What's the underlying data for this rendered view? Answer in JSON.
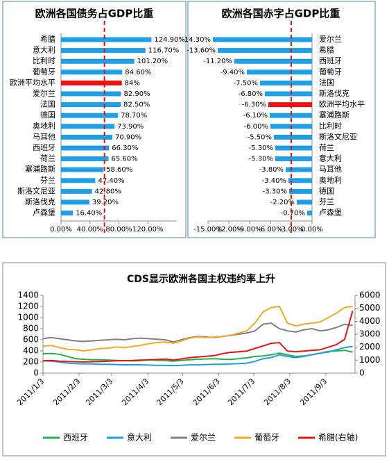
{
  "chart_data": [
    {
      "type": "hbar",
      "title": "欧洲各国债务占GDP比重",
      "categories": [
        "希腊",
        "意大利",
        "比利时",
        "葡萄牙",
        "欧洲平均水平",
        "爱尔兰",
        "法国",
        "德国",
        "奥地利",
        "马耳他",
        "西班牙",
        "荷兰",
        "塞浦路斯",
        "芬兰",
        "斯洛文尼亚",
        "斯洛伐克",
        "卢森堡"
      ],
      "values": [
        124.9,
        116.7,
        101.2,
        84.6,
        84,
        82.9,
        82.5,
        78.7,
        73.9,
        70.9,
        66.3,
        65.6,
        58.6,
        47.4,
        42.8,
        39.2,
        16.4
      ],
      "value_labels": [
        "124.90%",
        "116.70%",
        "101.20%",
        "84.60%",
        "84%",
        "82.90%",
        "82.50%",
        "78.70%",
        "73.90%",
        "70.90%",
        "66.30%",
        "65.60%",
        "58.60%",
        "47.40%",
        "42.80%",
        "39.20%",
        "16.40%"
      ],
      "colors": [
        "#1e9fe6",
        "#1e9fe6",
        "#1e9fe6",
        "#1e9fe6",
        "#ee1111",
        "#1e9fe6",
        "#1e9fe6",
        "#1e9fe6",
        "#1e9fe6",
        "#1e9fe6",
        "#1e9fe6",
        "#1e9fe6",
        "#1e9fe6",
        "#1e9fe6",
        "#1e9fe6",
        "#1e9fe6",
        "#1e9fe6"
      ],
      "xlim": [
        0,
        160
      ],
      "xticks": [
        {
          "value": 0,
          "label": "0.00%"
        },
        {
          "value": 40,
          "label": "40.00%"
        },
        {
          "value": 80,
          "label": "80.00%"
        },
        {
          "value": 120,
          "label": "120.00%"
        }
      ],
      "ref_line": 60,
      "ref_color": "#ee1111"
    },
    {
      "type": "hbar",
      "title": "欧洲各国赤字占GDP比重",
      "categories": [
        "爱尔兰",
        "希腊",
        "西班牙",
        "葡萄牙",
        "法国",
        "斯洛伐克",
        "欧洲平均水平",
        "塞浦路斯",
        "比利时",
        "斯洛文尼亚",
        "荷兰",
        "意大利",
        "马耳他",
        "奥地利",
        "德国",
        "芬兰",
        "卢森堡"
      ],
      "values": [
        -14.3,
        -13.6,
        -11.2,
        -9.4,
        -7.5,
        -6.8,
        -6.3,
        -6.1,
        -6.0,
        -5.5,
        -5.3,
        -5.3,
        -3.8,
        -3.4,
        -3.3,
        -2.2,
        -0.7
      ],
      "value_labels": [
        "-14.30%",
        "-13.60%",
        "-11.20%",
        "-9.40%",
        "-7.50%",
        "-6.80%",
        "-6.30%",
        "-6.10%",
        "-6.00%",
        "-5.50%",
        "-5.30%",
        "-5.30%",
        "-3.80%",
        "-3.40%",
        "-3.30%",
        "-2.20%",
        "-0.70%"
      ],
      "colors": [
        "#1e9fe6",
        "#1e9fe6",
        "#1e9fe6",
        "#1e9fe6",
        "#1e9fe6",
        "#1e9fe6",
        "#ee1111",
        "#1e9fe6",
        "#1e9fe6",
        "#1e9fe6",
        "#1e9fe6",
        "#1e9fe6",
        "#1e9fe6",
        "#1e9fe6",
        "#1e9fe6",
        "#1e9fe6",
        "#1e9fe6"
      ],
      "xlim": [
        -15,
        0
      ],
      "xticks": [
        {
          "value": -15,
          "label": "-15.00%"
        },
        {
          "value": -12,
          "label": "-12.00%"
        },
        {
          "value": -9,
          "label": "-9.00%"
        },
        {
          "value": -6,
          "label": "-6.00%"
        },
        {
          "value": -3,
          "label": "-3.00%"
        },
        {
          "value": 0,
          "label": "0.00%"
        }
      ],
      "ref_line": -3,
      "ref_color": "#ee1111"
    },
    {
      "type": "line",
      "title": "CDS显示欧洲各国主权违约率上升",
      "x": [
        "2011/1/3",
        "2011/1/10",
        "2011/1/17",
        "2011/1/24",
        "2011/1/31",
        "2011/2/7",
        "2011/2/14",
        "2011/2/21",
        "2011/2/28",
        "2011/3/7",
        "2011/3/14",
        "2011/3/21",
        "2011/3/28",
        "2011/4/4",
        "2011/4/11",
        "2011/4/18",
        "2011/4/25",
        "2011/5/2",
        "2011/5/9",
        "2011/5/16",
        "2011/5/23",
        "2011/5/30",
        "2011/6/6",
        "2011/6/13",
        "2011/6/20",
        "2011/6/27",
        "2011/7/4",
        "2011/7/11",
        "2011/7/18",
        "2011/7/25",
        "2011/8/1",
        "2011/8/8",
        "2011/8/15",
        "2011/8/22",
        "2011/8/29",
        "2011/9/5",
        "2011/9/12",
        "2011/9/19",
        "2011/9/26"
      ],
      "xlim": [
        "2011/1/3",
        "2011/9/28"
      ],
      "xticks": [
        "2011/1/3",
        "2011/2/3",
        "2011/3/3",
        "2011/4/3",
        "2011/5/3",
        "2011/6/3",
        "2011/7/3",
        "2011/8/3",
        "2011/9/3"
      ],
      "ylim": [
        0,
        1400
      ],
      "yticks": [
        0,
        200,
        400,
        600,
        800,
        1000,
        1200,
        1400
      ],
      "y2lim": [
        0,
        6000
      ],
      "y2ticks": [
        0,
        1000,
        2000,
        3000,
        4000,
        5000,
        6000
      ],
      "series": [
        {
          "name": "西班牙",
          "color": "#22b14c",
          "values": [
            350,
            355,
            340,
            300,
            260,
            250,
            240,
            240,
            235,
            230,
            225,
            220,
            225,
            240,
            230,
            225,
            215,
            230,
            240,
            250,
            255,
            260,
            250,
            245,
            260,
            275,
            300,
            310,
            330,
            360,
            330,
            300,
            310,
            330,
            360,
            390,
            400,
            410,
            380
          ]
        },
        {
          "name": "意大利",
          "color": "#1e9fe6",
          "values": [
            220,
            215,
            200,
            180,
            170,
            165,
            165,
            160,
            160,
            155,
            150,
            150,
            150,
            145,
            140,
            140,
            135,
            140,
            150,
            150,
            155,
            160,
            160,
            165,
            170,
            180,
            210,
            260,
            280,
            330,
            300,
            280,
            300,
            330,
            360,
            380,
            420,
            460,
            480
          ]
        },
        {
          "name": "爱尔兰",
          "color": "#808080",
          "values": [
            620,
            640,
            620,
            600,
            580,
            570,
            580,
            590,
            600,
            610,
            600,
            620,
            630,
            620,
            610,
            600,
            560,
            600,
            640,
            660,
            650,
            640,
            660,
            680,
            700,
            720,
            760,
            880,
            900,
            800,
            760,
            740,
            780,
            800,
            760,
            780,
            820,
            880,
            860
          ]
        },
        {
          "name": "葡萄牙",
          "color": "#f7a823",
          "values": [
            480,
            500,
            460,
            430,
            420,
            400,
            420,
            440,
            450,
            470,
            460,
            480,
            500,
            530,
            550,
            560,
            540,
            580,
            630,
            650,
            640,
            650,
            660,
            680,
            720,
            760,
            900,
            1100,
            1180,
            1200,
            900,
            850,
            880,
            900,
            920,
            1000,
            1080,
            1180,
            1200
          ]
        },
        {
          "name": "希腊(右轴)",
          "color": "#ee1111",
          "axis": "y2",
          "values": [
            950,
            980,
            920,
            900,
            880,
            860,
            880,
            900,
            920,
            950,
            960,
            980,
            1000,
            1020,
            1050,
            1080,
            1000,
            1100,
            1200,
            1250,
            1300,
            1350,
            1500,
            1600,
            1650,
            1700,
            1900,
            2100,
            2300,
            2350,
            1700,
            1650,
            1700,
            1750,
            1800,
            2000,
            2200,
            2600,
            4800
          ]
        }
      ]
    }
  ]
}
